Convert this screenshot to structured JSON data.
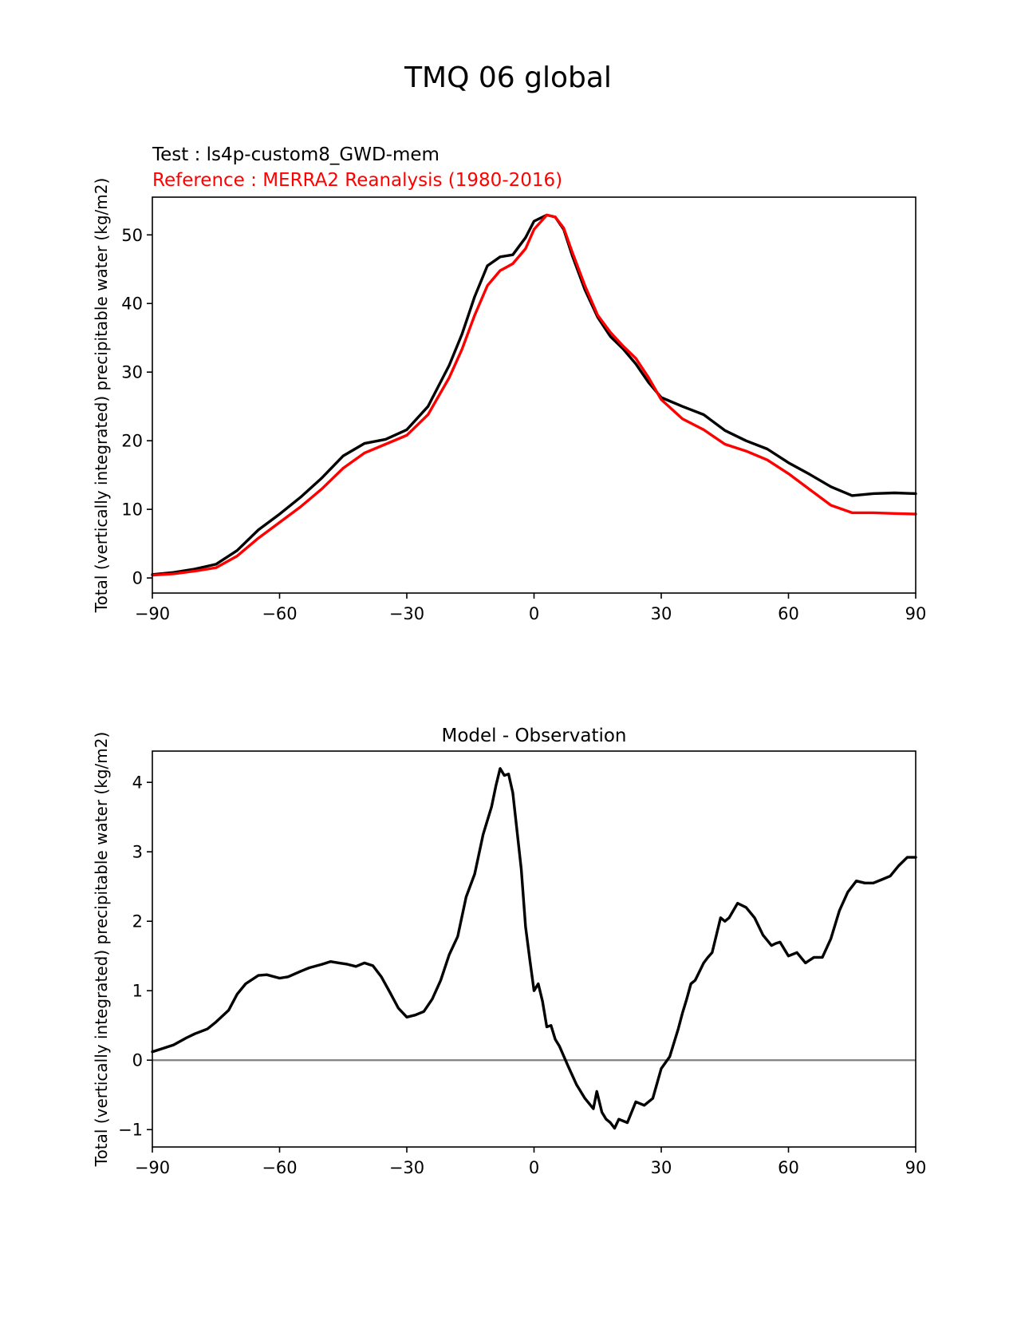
{
  "figure_title": "TMQ 06 global",
  "colors": {
    "test": "#000000",
    "reference": "#ff0000",
    "zero_line": "#808080"
  },
  "chart_data": [
    {
      "type": "line",
      "title": "",
      "test_label": "Test : ls4p-custom8_GWD-mem",
      "reference_label": "Reference : MERRA2 Reanalysis (1980-2016)",
      "xlabel": "",
      "ylabel": "Total (vertically integrated) precipitable water (kg/m2)",
      "xlim": [
        -90,
        90
      ],
      "ylim": [
        -2.2,
        55.5
      ],
      "xticks": [
        -90,
        -60,
        -30,
        0,
        30,
        60,
        90
      ],
      "xtick_labels": [
        "−90",
        "−60",
        "−30",
        "0",
        "30",
        "60",
        "90"
      ],
      "yticks": [
        0,
        10,
        20,
        30,
        40,
        50
      ],
      "ytick_labels": [
        "0",
        "10",
        "20",
        "30",
        "40",
        "50"
      ],
      "series": [
        {
          "name": "Test",
          "x": [
            -90,
            -85,
            -80,
            -75,
            -70,
            -65,
            -60,
            -55,
            -50,
            -45,
            -40,
            -35,
            -30,
            -25,
            -20,
            -17,
            -14,
            -11,
            -8,
            -5,
            -2,
            0,
            3,
            5,
            7,
            9,
            12,
            15,
            18,
            21,
            24,
            27,
            30,
            35,
            40,
            45,
            50,
            55,
            60,
            65,
            70,
            75,
            80,
            85,
            90
          ],
          "y": [
            0.5,
            0.8,
            1.3,
            2.0,
            4.0,
            7.0,
            9.3,
            11.8,
            14.6,
            17.8,
            19.6,
            20.2,
            21.6,
            25.0,
            31.0,
            35.5,
            41.0,
            45.5,
            46.8,
            47.1,
            49.6,
            52.0,
            52.9,
            52.6,
            50.8,
            47.0,
            42.0,
            38.0,
            35.2,
            33.4,
            31.2,
            28.5,
            26.3,
            25.0,
            23.8,
            21.5,
            20.0,
            18.8,
            16.8,
            15.1,
            13.3,
            12.0,
            12.3,
            12.4,
            12.3
          ]
        },
        {
          "name": "Reference",
          "x": [
            -90,
            -85,
            -80,
            -75,
            -70,
            -65,
            -60,
            -55,
            -50,
            -45,
            -40,
            -35,
            -30,
            -25,
            -20,
            -17,
            -14,
            -11,
            -8,
            -5,
            -2,
            0,
            3,
            5,
            7,
            9,
            12,
            15,
            18,
            21,
            24,
            27,
            30,
            35,
            40,
            45,
            50,
            55,
            60,
            65,
            70,
            75,
            80,
            85,
            90
          ],
          "y": [
            0.4,
            0.6,
            1.0,
            1.5,
            3.2,
            5.8,
            8.1,
            10.4,
            13.0,
            16.0,
            18.2,
            19.5,
            20.8,
            23.8,
            29.2,
            33.3,
            38.3,
            42.6,
            44.8,
            45.8,
            48.0,
            50.8,
            52.9,
            52.6,
            51.0,
            47.5,
            42.6,
            38.3,
            35.8,
            33.8,
            32.0,
            29.2,
            26.0,
            23.2,
            21.6,
            19.5,
            18.5,
            17.2,
            15.2,
            12.9,
            10.6,
            9.5,
            9.5,
            9.4,
            9.3
          ]
        }
      ]
    },
    {
      "type": "line",
      "title": "Model - Observation",
      "xlabel": "",
      "ylabel": "Total (vertically integrated) precipitable water (kg/m2)",
      "xlim": [
        -90,
        90
      ],
      "ylim": [
        -1.25,
        4.45
      ],
      "xticks": [
        -90,
        -60,
        -30,
        0,
        30,
        60,
        90
      ],
      "xtick_labels": [
        "−90",
        "−60",
        "−30",
        "0",
        "30",
        "60",
        "90"
      ],
      "yticks": [
        -1,
        0,
        1,
        2,
        3,
        4
      ],
      "ytick_labels": [
        "−1",
        "0",
        "1",
        "2",
        "3",
        "4"
      ],
      "zero_line": 0,
      "series": [
        {
          "name": "Model - Observation",
          "x": [
            -90,
            -87,
            -85,
            -82,
            -80,
            -77,
            -75,
            -72,
            -70,
            -68,
            -65,
            -63,
            -60,
            -58,
            -55,
            -53,
            -50,
            -48,
            -46,
            -44,
            -42,
            -40,
            -38,
            -36,
            -34,
            -32,
            -30,
            -28,
            -26,
            -24,
            -22,
            -20,
            -18,
            -16,
            -14,
            -12,
            -10,
            -9,
            -8,
            -7,
            -6,
            -5,
            -4,
            -3,
            -2,
            -1,
            0,
            1,
            2,
            3,
            4,
            5,
            6,
            8,
            10,
            12,
            14,
            14.8,
            16,
            17,
            18,
            19,
            20,
            22,
            24,
            26,
            28,
            30,
            32,
            34,
            35,
            36,
            37,
            38,
            40,
            41,
            42,
            43,
            44,
            45,
            46,
            48,
            50,
            52,
            54,
            56,
            57,
            58,
            60,
            62,
            64,
            66,
            68,
            70,
            72,
            74,
            76,
            78,
            80,
            82,
            84,
            86,
            88,
            90
          ],
          "y": [
            0.12,
            0.18,
            0.22,
            0.32,
            0.38,
            0.45,
            0.55,
            0.72,
            0.95,
            1.1,
            1.22,
            1.23,
            1.18,
            1.2,
            1.28,
            1.33,
            1.38,
            1.42,
            1.4,
            1.38,
            1.35,
            1.4,
            1.36,
            1.2,
            0.98,
            0.75,
            0.62,
            0.65,
            0.7,
            0.88,
            1.15,
            1.52,
            1.78,
            2.35,
            2.68,
            3.25,
            3.65,
            3.95,
            4.2,
            4.1,
            4.12,
            3.85,
            3.3,
            2.75,
            1.92,
            1.45,
            1.0,
            1.1,
            0.85,
            0.48,
            0.5,
            0.3,
            0.2,
            -0.08,
            -0.35,
            -0.55,
            -0.7,
            -0.45,
            -0.75,
            -0.85,
            -0.9,
            -0.98,
            -0.85,
            -0.9,
            -0.6,
            -0.65,
            -0.55,
            -0.12,
            0.05,
            0.45,
            0.68,
            0.88,
            1.1,
            1.15,
            1.4,
            1.48,
            1.55,
            1.8,
            2.05,
            2.0,
            2.05,
            2.26,
            2.2,
            2.05,
            1.8,
            1.65,
            1.68,
            1.7,
            1.5,
            1.55,
            1.4,
            1.48,
            1.48,
            1.75,
            2.15,
            2.42,
            2.58,
            2.55,
            2.55,
            2.6,
            2.65,
            2.8,
            2.92,
            2.92
          ]
        }
      ]
    }
  ]
}
